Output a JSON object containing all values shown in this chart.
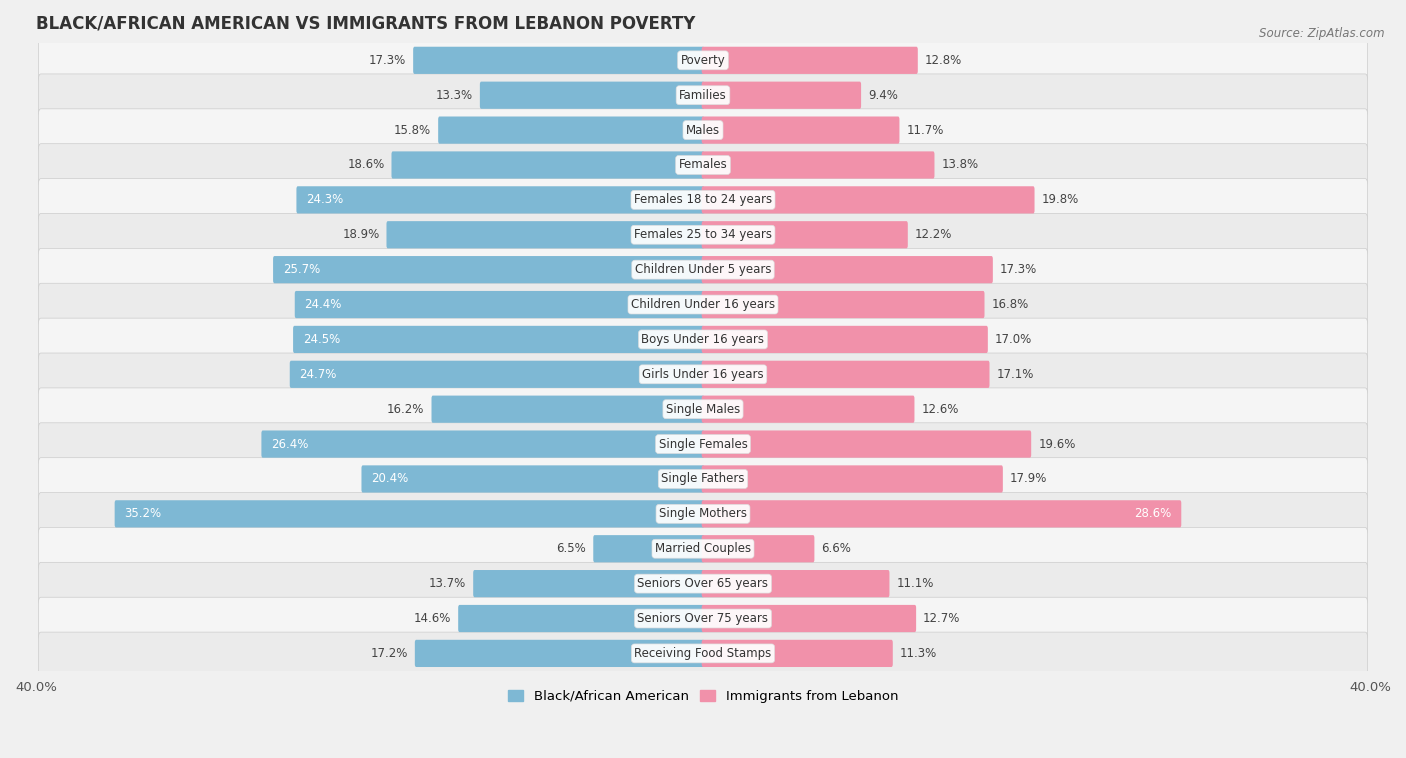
{
  "title": "BLACK/AFRICAN AMERICAN VS IMMIGRANTS FROM LEBANON POVERTY",
  "source": "Source: ZipAtlas.com",
  "categories": [
    "Poverty",
    "Families",
    "Males",
    "Females",
    "Females 18 to 24 years",
    "Females 25 to 34 years",
    "Children Under 5 years",
    "Children Under 16 years",
    "Boys Under 16 years",
    "Girls Under 16 years",
    "Single Males",
    "Single Females",
    "Single Fathers",
    "Single Mothers",
    "Married Couples",
    "Seniors Over 65 years",
    "Seniors Over 75 years",
    "Receiving Food Stamps"
  ],
  "left_values": [
    17.3,
    13.3,
    15.8,
    18.6,
    24.3,
    18.9,
    25.7,
    24.4,
    24.5,
    24.7,
    16.2,
    26.4,
    20.4,
    35.2,
    6.5,
    13.7,
    14.6,
    17.2
  ],
  "right_values": [
    12.8,
    9.4,
    11.7,
    13.8,
    19.8,
    12.2,
    17.3,
    16.8,
    17.0,
    17.1,
    12.6,
    19.6,
    17.9,
    28.6,
    6.6,
    11.1,
    12.7,
    11.3
  ],
  "left_color": "#7eb8d4",
  "right_color": "#f191aa",
  "left_label": "Black/African American",
  "right_label": "Immigrants from Lebanon",
  "xlim": 40.0,
  "row_color_even": "#f5f5f5",
  "row_color_odd": "#ebebeb",
  "background_color": "#f0f0f0",
  "title_fontsize": 12,
  "source_fontsize": 8.5,
  "axis_fontsize": 9.5,
  "label_fontsize": 8.5,
  "value_fontsize": 8.5,
  "white_text_threshold": 20.0
}
